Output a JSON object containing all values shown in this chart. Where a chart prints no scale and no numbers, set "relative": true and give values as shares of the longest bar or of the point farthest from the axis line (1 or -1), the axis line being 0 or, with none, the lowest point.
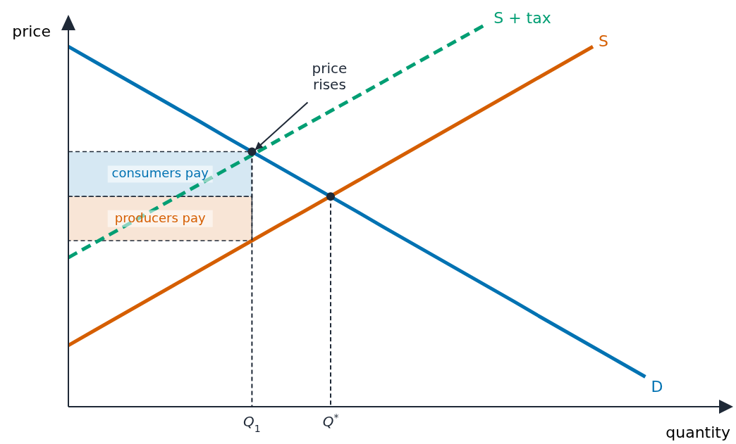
{
  "chart_data": {
    "type": "line",
    "relative": true,
    "xlabel": "quantity",
    "ylabel": "price",
    "categories": [
      null,
      null,
      null,
      null,
      null,
      null,
      null,
      "Q$_{1}$",
      null,
      null,
      "Q$^{*}$",
      null,
      null,
      null,
      null,
      null,
      null,
      null,
      null,
      null,
      null,
      null,
      null,
      null,
      null,
      null
    ],
    "tick_labels": "x",
    "legend": false,
    "grid": false,
    "marker": "none",
    "series": [
      {
        "name": "D",
        "color": "#0072b2",
        "values": [
          0.939,
          0.9,
          0.861,
          0.822,
          0.783,
          0.744,
          0.704,
          0.665,
          0.626,
          0.587,
          0.548,
          0.509,
          0.469,
          0.43,
          0.391,
          0.352,
          0.313,
          0.274,
          0.234,
          0.195,
          0.156,
          0.117,
          0.078,
          null,
          null,
          null
        ]
      },
      {
        "name": "S",
        "color": "#d55e00",
        "values": [
          0.16,
          0.199,
          0.238,
          0.277,
          0.316,
          0.355,
          0.394,
          0.433,
          0.472,
          0.51,
          0.549,
          0.588,
          0.627,
          0.666,
          0.705,
          0.744,
          0.783,
          0.822,
          0.861,
          0.9,
          0.939,
          null,
          null,
          null,
          null,
          null
        ]
      },
      {
        "name": "S + tax",
        "color": "#009e73",
        "line_style": "dashed",
        "values": [
          0.389,
          0.427,
          0.465,
          0.504,
          0.542,
          0.58,
          0.618,
          0.656,
          0.695,
          0.733,
          0.771,
          0.809,
          0.847,
          0.886,
          0.924,
          0.962,
          1.0,
          null,
          null,
          null,
          null,
          null,
          null,
          null,
          null,
          null
        ]
      },
      {
        "type": "scatter",
        "color": "#1f2937",
        "marker": "circle",
        "x": [
          "Q$_{1}$",
          "Q$^{*}$"
        ],
        "values": [
          0.665,
          0.548
        ]
      }
    ],
    "bands": [
      {
        "axis": "y",
        "from": 0.548,
        "to": 0.665,
        "label": "consumers pay",
        "color": "#0072b2"
      },
      {
        "axis": "y",
        "from": 0.433,
        "to": 0.548,
        "label": "producers pay",
        "color": "#d55e00"
      }
    ],
    "annotations": [
      {
        "text": "price rises",
        "x": "Q$_{1}$",
        "y": 0.665
      }
    ]
  }
}
